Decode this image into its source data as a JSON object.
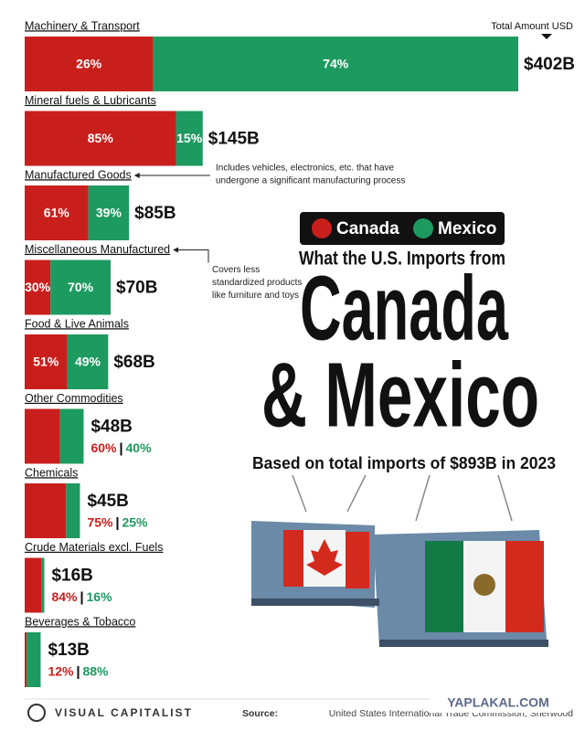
{
  "chart_data": {
    "type": "bar",
    "orientation": "horizontal",
    "stacked": true,
    "title": "What the U.S. Imports from",
    "headline": [
      "Canada",
      "& Mexico"
    ],
    "subtitle": "Based on total imports of $893B in 2023",
    "categories": [
      "Machinery & Transport",
      "Mineral fuels & Lubricants",
      "Manufactured Goods",
      "Miscellaneous Manufactured",
      "Food & Live Animals",
      "Other Commodities",
      "Chemicals",
      "Crude Materials excl. Fuels",
      "Beverages & Tobacco"
    ],
    "series": [
      {
        "name": "Canada",
        "color": "#c91f1c",
        "values": [
          26,
          85,
          61,
          30,
          51,
          60,
          75,
          84,
          12
        ],
        "value_labels": [
          "26%",
          "85%",
          "61%",
          "30%",
          "51%",
          "60%",
          "75%",
          "84%",
          "12%"
        ]
      },
      {
        "name": "Mexico",
        "color": "#1d9a60",
        "values": [
          74,
          15,
          39,
          70,
          49,
          40,
          25,
          16,
          88
        ],
        "value_labels": [
          "74%",
          "15%",
          "39%",
          "70%",
          "49%",
          "40%",
          "25%",
          "16%",
          "88%"
        ]
      }
    ],
    "total": {
      "label": "Total Amount USD",
      "values": [
        402,
        145,
        85,
        70,
        68,
        48,
        45,
        16,
        13
      ],
      "value_labels": [
        "$402B",
        "$145B",
        "$85B",
        "$70B",
        "$68B",
        "$48B",
        "$45B",
        "$16B",
        "$13B"
      ]
    },
    "annotations": [
      {
        "category": 2,
        "lines": [
          "Includes vehicles, electronics, etc. that have",
          "undergone a significant manufacturing process"
        ]
      },
      {
        "category": 3,
        "lines": [
          "Covers less",
          "standardized products",
          "like furniture and toys"
        ]
      }
    ],
    "brand": "VISUAL CAPITALIST",
    "source_label": "Source:",
    "source": "United States International Trade Commission, Sherwood",
    "watermark": "YAPLAKAL.COM"
  }
}
